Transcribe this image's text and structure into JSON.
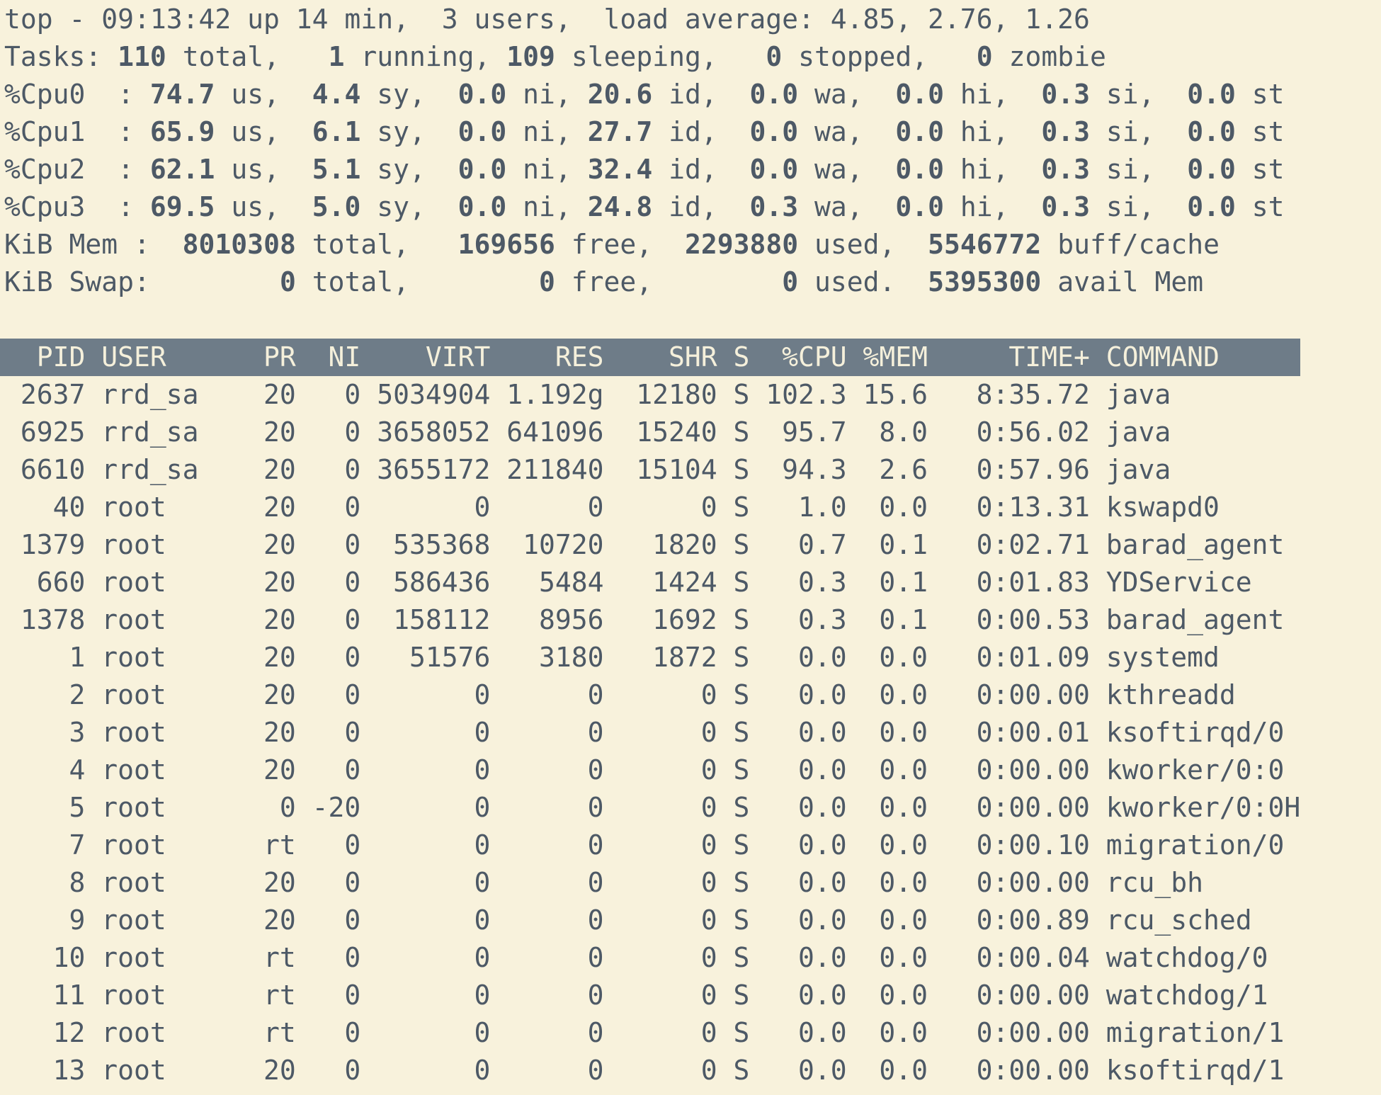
{
  "terminal": {
    "app": "top",
    "colors": {
      "background": "#f8f2dc",
      "foreground": "#4d5966",
      "header_bg": "#6e7c88",
      "header_fg": "#f5f0db"
    },
    "summary_lines": [
      {
        "id": "uptime",
        "prefix": "top - 09:13:42 up 14 min,  3 users,  load average: 4.85, 2.76, 1.26",
        "pad": 0,
        "items": []
      },
      {
        "id": "tasks",
        "prefix": "Tasks:",
        "pad": 3,
        "items": [
          {
            "v": "110",
            "u": "total,"
          },
          {
            "v": "1",
            "u": "running,"
          },
          {
            "v": "109",
            "u": "sleeping,"
          },
          {
            "v": "0",
            "u": "stopped,"
          },
          {
            "v": "0",
            "u": "zombie"
          }
        ]
      },
      {
        "id": "cpu0",
        "prefix": "%Cpu0  :",
        "pad": 4,
        "items": [
          {
            "v": "74.7",
            "u": "us,"
          },
          {
            "v": "4.4",
            "u": "sy,"
          },
          {
            "v": "0.0",
            "u": "ni,"
          },
          {
            "v": "20.6",
            "u": "id,"
          },
          {
            "v": "0.0",
            "u": "wa,"
          },
          {
            "v": "0.0",
            "u": "hi,"
          },
          {
            "v": "0.3",
            "u": "si,"
          },
          {
            "v": "0.0",
            "u": "st"
          }
        ]
      },
      {
        "id": "cpu1",
        "prefix": "%Cpu1  :",
        "pad": 4,
        "items": [
          {
            "v": "65.9",
            "u": "us,"
          },
          {
            "v": "6.1",
            "u": "sy,"
          },
          {
            "v": "0.0",
            "u": "ni,"
          },
          {
            "v": "27.7",
            "u": "id,"
          },
          {
            "v": "0.0",
            "u": "wa,"
          },
          {
            "v": "0.0",
            "u": "hi,"
          },
          {
            "v": "0.3",
            "u": "si,"
          },
          {
            "v": "0.0",
            "u": "st"
          }
        ]
      },
      {
        "id": "cpu2",
        "prefix": "%Cpu2  :",
        "pad": 4,
        "items": [
          {
            "v": "62.1",
            "u": "us,"
          },
          {
            "v": "5.1",
            "u": "sy,"
          },
          {
            "v": "0.0",
            "u": "ni,"
          },
          {
            "v": "32.4",
            "u": "id,"
          },
          {
            "v": "0.0",
            "u": "wa,"
          },
          {
            "v": "0.0",
            "u": "hi,"
          },
          {
            "v": "0.3",
            "u": "si,"
          },
          {
            "v": "0.0",
            "u": "st"
          }
        ]
      },
      {
        "id": "cpu3",
        "prefix": "%Cpu3  :",
        "pad": 4,
        "items": [
          {
            "v": "69.5",
            "u": "us,"
          },
          {
            "v": "5.0",
            "u": "sy,"
          },
          {
            "v": "0.0",
            "u": "ni,"
          },
          {
            "v": "24.8",
            "u": "id,"
          },
          {
            "v": "0.3",
            "u": "wa,"
          },
          {
            "v": "0.0",
            "u": "hi,"
          },
          {
            "v": "0.3",
            "u": "si,"
          },
          {
            "v": "0.0",
            "u": "st"
          }
        ]
      },
      {
        "id": "mem",
        "prefix": "KiB Mem :",
        "pad": 8,
        "items": [
          {
            "v": "8010308",
            "u": "total,"
          },
          {
            "v": "169656",
            "u": "free,"
          },
          {
            "v": "2293880",
            "u": "used,"
          },
          {
            "v": "5546772",
            "u": "buff/cache"
          }
        ]
      },
      {
        "id": "swap",
        "prefix": "KiB Swap:",
        "pad": 8,
        "items": [
          {
            "v": "0",
            "u": "total,"
          },
          {
            "v": "0",
            "u": "free,"
          },
          {
            "v": "0",
            "u": "used."
          },
          {
            "v": "5395300",
            "u": "avail Mem"
          }
        ]
      }
    ],
    "table": {
      "columns": [
        {
          "label": "PID",
          "width": 5,
          "align": "right"
        },
        {
          "label": "USER",
          "width": 8,
          "align": "left"
        },
        {
          "label": "PR",
          "width": 3,
          "align": "right"
        },
        {
          "label": "NI",
          "width": 3,
          "align": "right"
        },
        {
          "label": "VIRT",
          "width": 7,
          "align": "right"
        },
        {
          "label": "RES",
          "width": 6,
          "align": "right"
        },
        {
          "label": "SHR",
          "width": 6,
          "align": "right"
        },
        {
          "label": "S",
          "width": 1,
          "align": "left"
        },
        {
          "label": "%CPU",
          "width": 5,
          "align": "right"
        },
        {
          "label": "%MEM",
          "width": 4,
          "align": "right"
        },
        {
          "label": "TIME+",
          "width": 9,
          "align": "right"
        },
        {
          "label": "COMMAND",
          "width": 7,
          "align": "left"
        }
      ],
      "terminal_cols": 80,
      "rows": [
        [
          "2637",
          "rrd_sa",
          "20",
          "0",
          "5034904",
          "1.192g",
          "12180",
          "S",
          "102.3",
          "15.6",
          "8:35.72",
          "java"
        ],
        [
          "6925",
          "rrd_sa",
          "20",
          "0",
          "3658052",
          "641096",
          "15240",
          "S",
          "95.7",
          "8.0",
          "0:56.02",
          "java"
        ],
        [
          "6610",
          "rrd_sa",
          "20",
          "0",
          "3655172",
          "211840",
          "15104",
          "S",
          "94.3",
          "2.6",
          "0:57.96",
          "java"
        ],
        [
          "40",
          "root",
          "20",
          "0",
          "0",
          "0",
          "0",
          "S",
          "1.0",
          "0.0",
          "0:13.31",
          "kswapd0"
        ],
        [
          "1379",
          "root",
          "20",
          "0",
          "535368",
          "10720",
          "1820",
          "S",
          "0.7",
          "0.1",
          "0:02.71",
          "barad_agent"
        ],
        [
          "660",
          "root",
          "20",
          "0",
          "586436",
          "5484",
          "1424",
          "S",
          "0.3",
          "0.1",
          "0:01.83",
          "YDService"
        ],
        [
          "1378",
          "root",
          "20",
          "0",
          "158112",
          "8956",
          "1692",
          "S",
          "0.3",
          "0.1",
          "0:00.53",
          "barad_agent"
        ],
        [
          "1",
          "root",
          "20",
          "0",
          "51576",
          "3180",
          "1872",
          "S",
          "0.0",
          "0.0",
          "0:01.09",
          "systemd"
        ],
        [
          "2",
          "root",
          "20",
          "0",
          "0",
          "0",
          "0",
          "S",
          "0.0",
          "0.0",
          "0:00.00",
          "kthreadd"
        ],
        [
          "3",
          "root",
          "20",
          "0",
          "0",
          "0",
          "0",
          "S",
          "0.0",
          "0.0",
          "0:00.01",
          "ksoftirqd/0"
        ],
        [
          "4",
          "root",
          "20",
          "0",
          "0",
          "0",
          "0",
          "S",
          "0.0",
          "0.0",
          "0:00.00",
          "kworker/0:0"
        ],
        [
          "5",
          "root",
          "0",
          "-20",
          "0",
          "0",
          "0",
          "S",
          "0.0",
          "0.0",
          "0:00.00",
          "kworker/0:0H"
        ],
        [
          "7",
          "root",
          "rt",
          "0",
          "0",
          "0",
          "0",
          "S",
          "0.0",
          "0.0",
          "0:00.10",
          "migration/0"
        ],
        [
          "8",
          "root",
          "20",
          "0",
          "0",
          "0",
          "0",
          "S",
          "0.0",
          "0.0",
          "0:00.00",
          "rcu_bh"
        ],
        [
          "9",
          "root",
          "20",
          "0",
          "0",
          "0",
          "0",
          "S",
          "0.0",
          "0.0",
          "0:00.89",
          "rcu_sched"
        ],
        [
          "10",
          "root",
          "rt",
          "0",
          "0",
          "0",
          "0",
          "S",
          "0.0",
          "0.0",
          "0:00.04",
          "watchdog/0"
        ],
        [
          "11",
          "root",
          "rt",
          "0",
          "0",
          "0",
          "0",
          "S",
          "0.0",
          "0.0",
          "0:00.00",
          "watchdog/1"
        ],
        [
          "12",
          "root",
          "rt",
          "0",
          "0",
          "0",
          "0",
          "S",
          "0.0",
          "0.0",
          "0:00.00",
          "migration/1"
        ],
        [
          "13",
          "root",
          "20",
          "0",
          "0",
          "0",
          "0",
          "S",
          "0.0",
          "0.0",
          "0:00.00",
          "ksoftirqd/1"
        ]
      ]
    }
  }
}
